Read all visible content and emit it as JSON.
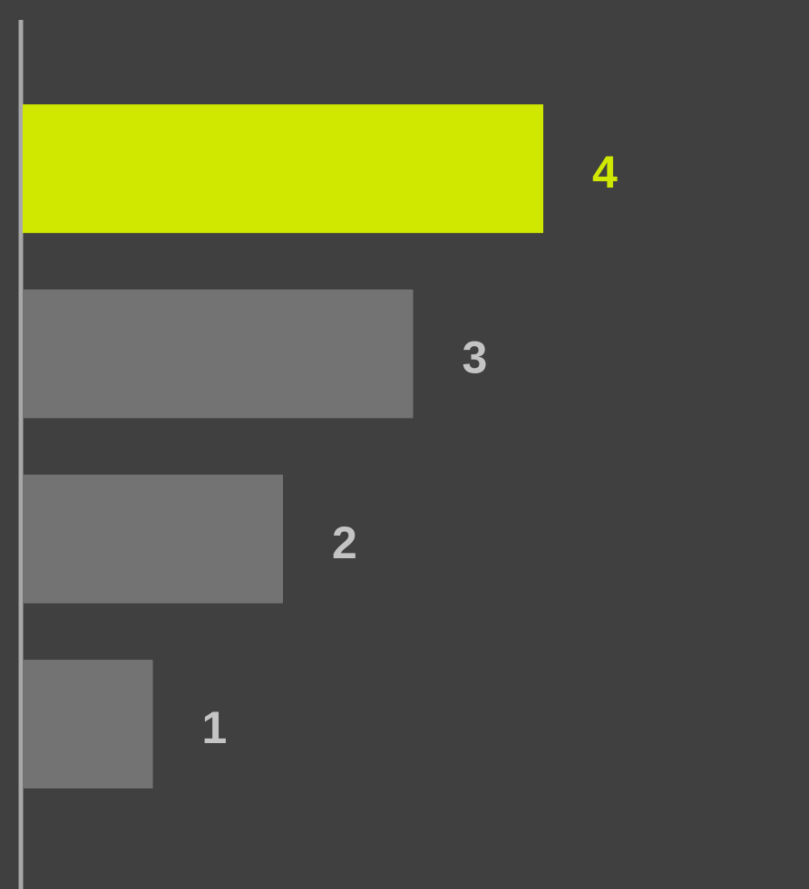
{
  "chart_data": {
    "type": "hbar",
    "values": [
      4,
      3,
      2,
      1
    ],
    "colors": [
      "#d0e800",
      "#737373",
      "#737373",
      "#737373"
    ],
    "label_colors": [
      "#d0e800",
      "#c4c4c4",
      "#c4c4c4",
      "#c4c4c4"
    ],
    "xlim": [
      0,
      6
    ]
  }
}
